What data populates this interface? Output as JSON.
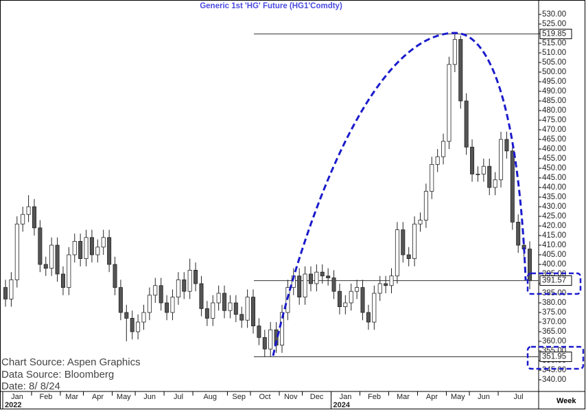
{
  "chart_data": {
    "type": "candlestick",
    "title": "Generic  1st  'HG'  Future  (HG1'Comdty)",
    "sources": [
      "Chart Source:  Aspen Graphics",
      "Data  Source:  Bloomberg",
      "Date:    8/  8/24"
    ],
    "period": "Week",
    "up_color": "#ffffff",
    "down_color": "#555555",
    "open": [
      388,
      382,
      392,
      421,
      426,
      430,
      419,
      400,
      398,
      410,
      395,
      388,
      405,
      412,
      403,
      414,
      405,
      409,
      414,
      400,
      388,
      375,
      372,
      365,
      370,
      375,
      384,
      389,
      380,
      375,
      383,
      392,
      386,
      397,
      390,
      377,
      372,
      380,
      385,
      376,
      380,
      374,
      371,
      383,
      368,
      362,
      356,
      366,
      358,
      375,
      388,
      394,
      383,
      395,
      390,
      396,
      394,
      393,
      386,
      378,
      380,
      386,
      388,
      375,
      370,
      385,
      390,
      389,
      394,
      418,
      405,
      403,
      421,
      423,
      438,
      452,
      456,
      464,
      504,
      517,
      485,
      461,
      447,
      447,
      451,
      440,
      444,
      465,
      459,
      422,
      410,
      408
    ],
    "high": [
      392,
      396,
      425,
      430,
      436,
      434,
      423,
      404,
      414,
      414,
      399,
      409,
      416,
      416,
      418,
      418,
      413,
      418,
      418,
      404,
      392,
      379,
      376,
      374,
      379,
      388,
      393,
      393,
      384,
      387,
      396,
      396,
      403,
      401,
      394,
      381,
      384,
      389,
      389,
      384,
      384,
      378,
      387,
      387,
      372,
      366,
      370,
      370,
      379,
      392,
      398,
      398,
      399,
      399,
      400,
      400,
      398,
      397,
      390,
      384,
      390,
      392,
      392,
      379,
      389,
      394,
      394,
      398,
      422,
      422,
      409,
      425,
      427,
      442,
      456,
      460,
      468,
      508,
      519.85,
      519,
      489,
      465,
      451,
      455,
      455,
      448,
      469,
      469,
      463,
      426,
      414,
      412
    ],
    "low": [
      378,
      378,
      388,
      417,
      422,
      415,
      396,
      394,
      394,
      391,
      384,
      384,
      401,
      399,
      399,
      401,
      401,
      405,
      396,
      384,
      371,
      360,
      361,
      361,
      366,
      371,
      380,
      376,
      371,
      371,
      379,
      382,
      382,
      386,
      373,
      368,
      368,
      376,
      372,
      372,
      370,
      367,
      367,
      364,
      358,
      351.95,
      352,
      354,
      354,
      371,
      384,
      379,
      379,
      386,
      386,
      390,
      389,
      382,
      374,
      374,
      376,
      382,
      371,
      366,
      366,
      381,
      385,
      385,
      390,
      401,
      399,
      399,
      417,
      419,
      434,
      448,
      452,
      460,
      500,
      481,
      457,
      443,
      443,
      443,
      436,
      436,
      440,
      455,
      418,
      406,
      404,
      387
    ],
    "close": [
      382,
      392,
      421,
      426,
      430,
      419,
      400,
      398,
      410,
      395,
      388,
      405,
      412,
      403,
      414,
      405,
      409,
      414,
      400,
      388,
      375,
      372,
      365,
      370,
      375,
      384,
      389,
      380,
      375,
      383,
      392,
      386,
      397,
      390,
      377,
      372,
      380,
      385,
      376,
      380,
      374,
      371,
      383,
      368,
      362,
      356,
      366,
      358,
      375,
      388,
      394,
      383,
      395,
      390,
      396,
      394,
      393,
      386,
      378,
      380,
      386,
      388,
      375,
      370,
      385,
      390,
      389,
      394,
      418,
      405,
      403,
      421,
      423,
      438,
      452,
      456,
      464,
      504,
      517,
      485,
      461,
      447,
      447,
      451,
      440,
      444,
      465,
      459,
      422,
      410,
      408,
      391.57
    ],
    "levels": [
      519.85,
      391.57,
      351.95
    ],
    "ylim": [
      338,
      534
    ],
    "yticks": [
      {
        "value": 340,
        "label": "340.00"
      },
      {
        "value": 345,
        "label": "345.00"
      },
      {
        "value": 350,
        "label": "350.00"
      },
      {
        "value": 355,
        "label": "355.00"
      },
      {
        "value": 360,
        "label": "360.00"
      },
      {
        "value": 365,
        "label": "365.00"
      },
      {
        "value": 370,
        "label": "370.00"
      },
      {
        "value": 375,
        "label": "375.00"
      },
      {
        "value": 380,
        "label": "380.00"
      },
      {
        "value": 385,
        "label": "385.00"
      },
      {
        "value": 390,
        "label": "390.00"
      },
      {
        "value": 395,
        "label": "395.00"
      },
      {
        "value": 400,
        "label": "400.00"
      },
      {
        "value": 405,
        "label": "405.00"
      },
      {
        "value": 410,
        "label": "410.00"
      },
      {
        "value": 415,
        "label": "415.00"
      },
      {
        "value": 420,
        "label": "420.00"
      },
      {
        "value": 425,
        "label": "425.00"
      },
      {
        "value": 430,
        "label": "430.00"
      },
      {
        "value": 435,
        "label": "435.00"
      },
      {
        "value": 440,
        "label": "440.00"
      },
      {
        "value": 445,
        "label": "445.00"
      },
      {
        "value": 450,
        "label": "450.00"
      },
      {
        "value": 455,
        "label": "455.00"
      },
      {
        "value": 460,
        "label": "460.00"
      },
      {
        "value": 465,
        "label": "465.00"
      },
      {
        "value": 470,
        "label": "470.00"
      },
      {
        "value": 475,
        "label": "475.00"
      },
      {
        "value": 480,
        "label": "480.00"
      },
      {
        "value": 485,
        "label": "485.00"
      },
      {
        "value": 490,
        "label": "490.00"
      },
      {
        "value": 495,
        "label": "495.00"
      },
      {
        "value": 500,
        "label": "500.00"
      },
      {
        "value": 505,
        "label": "505.00"
      },
      {
        "value": 510,
        "label": "510.00"
      },
      {
        "value": 515,
        "label": "515.00"
      },
      {
        "value": 520,
        "label": "520.00"
      },
      {
        "value": 525,
        "label": "525.00"
      },
      {
        "value": 530,
        "label": "530.00"
      }
    ],
    "xticks": [
      {
        "value": 0,
        "label": "Jan"
      },
      {
        "value": 5,
        "label": "Feb"
      },
      {
        "value": 10,
        "label": "Mar"
      },
      {
        "value": 14,
        "label": "Apr"
      },
      {
        "value": 19,
        "label": "May"
      },
      {
        "value": 23,
        "label": "Jun"
      },
      {
        "value": 28,
        "label": "Jul"
      },
      {
        "value": 33,
        "label": "Aug"
      },
      {
        "value": 39,
        "label": "Sep"
      },
      {
        "value": 43,
        "label": "Oct"
      },
      {
        "value": 48,
        "label": "Nov"
      },
      {
        "value": 52,
        "label": "Dec"
      },
      {
        "value": 57,
        "label": "Jan"
      },
      {
        "value": 62,
        "label": "Feb"
      },
      {
        "value": 67,
        "label": "Mar"
      },
      {
        "value": 72,
        "label": "Apr"
      },
      {
        "value": 77,
        "label": "May"
      },
      {
        "value": 81,
        "label": "Jun"
      },
      {
        "value": 86,
        "label": "Jul"
      }
    ],
    "years": [
      {
        "value": 0,
        "label": "2022"
      },
      {
        "value": 57,
        "label": "2024"
      }
    ]
  }
}
